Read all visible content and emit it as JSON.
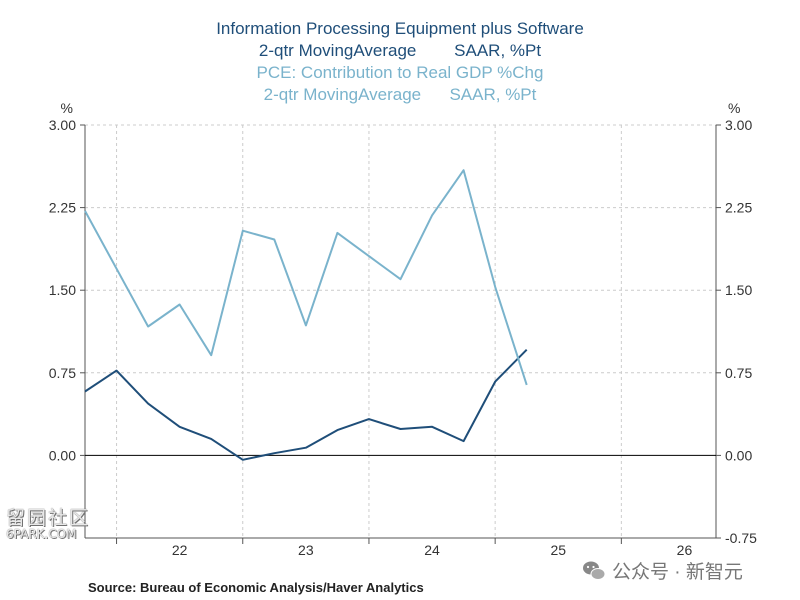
{
  "titles": {
    "line1": "Information Processing Equipment plus Software",
    "line2": "2-qtr MovingAverage        SAAR, %Pt",
    "line3": "PCE: Contribution to Real GDP %Chg",
    "line4": "2-qtr MovingAverage      SAAR, %Pt"
  },
  "source": "Source:  Bureau of Economic Analysis/Haver Analytics",
  "watermark_left": {
    "cjk": "留园社区",
    "site": "6PARK.COM"
  },
  "watermark_right": {
    "text": "公众号 · 新智元",
    "icon": "wechat-icon"
  },
  "colors": {
    "dark_series": "#1f4e79",
    "light_series": "#7ab3cc",
    "grid": "#cccccc",
    "axis": "#555555"
  },
  "chart_data": {
    "type": "line",
    "x_tick_labels": [
      "22",
      "23",
      "24",
      "25",
      "26"
    ],
    "y_left_unit": "%",
    "y_right_unit": "%",
    "y_left_ticks": [
      "3.00",
      "2.25",
      "1.50",
      "0.75",
      "0.00"
    ],
    "y_right_ticks": [
      "3.00",
      "2.25",
      "1.50",
      "0.75",
      "0.00",
      "-0.75"
    ],
    "ylim": [
      -0.75,
      3.0
    ],
    "xlim": [
      "2021-Q4",
      "2026-Q4"
    ],
    "grid": true,
    "zero_line": true,
    "series": [
      {
        "name": "Information Processing Equipment plus Software",
        "color": "#1f4e79",
        "x": [
          "2021-Q4",
          "2022-Q1",
          "2022-Q2",
          "2022-Q3",
          "2022-Q4",
          "2023-Q1",
          "2023-Q2",
          "2023-Q3",
          "2023-Q4",
          "2024-Q1",
          "2024-Q2",
          "2024-Q3",
          "2024-Q4",
          "2025-Q1",
          "2025-Q2"
        ],
        "values": [
          0.58,
          0.77,
          0.47,
          0.26,
          0.15,
          -0.04,
          0.02,
          0.07,
          0.23,
          0.33,
          0.24,
          0.26,
          0.13,
          0.67,
          0.96
        ]
      },
      {
        "name": "PCE: Contribution to Real GDP %Chg",
        "color": "#7ab3cc",
        "x": [
          "2021-Q4",
          "2022-Q2",
          "2022-Q3",
          "2022-Q4",
          "2023-Q1",
          "2023-Q2",
          "2023-Q3",
          "2023-Q4",
          "2024-Q1",
          "2024-Q2",
          "2024-Q3",
          "2024-Q4",
          "2025-Q1",
          "2025-Q2"
        ],
        "values": [
          2.22,
          1.17,
          1.37,
          0.91,
          2.04,
          1.96,
          1.18,
          2.02,
          1.81,
          1.6,
          2.18,
          2.59,
          1.53,
          0.64
        ]
      }
    ]
  }
}
